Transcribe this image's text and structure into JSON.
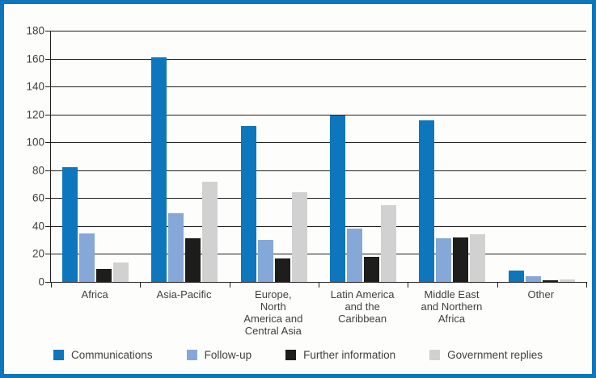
{
  "frame": {
    "border_color": "#0e76bc",
    "background": "#fdfdfb"
  },
  "chart_data": {
    "type": "bar",
    "title": "",
    "xlabel": "",
    "ylabel": "",
    "ylim": [
      0,
      180
    ],
    "y_ticks": [
      0,
      20,
      40,
      60,
      80,
      100,
      120,
      140,
      160,
      180
    ],
    "grid": "horizontal",
    "legend_position": "bottom",
    "categories": [
      "Africa",
      "Asia-Pacific",
      "Europe,\nNorth\nAmerica and\nCentral Asia",
      "Latin America\nand the\nCaribbean",
      "Middle East\nand Northern\nAfrica",
      "Other"
    ],
    "series": [
      {
        "name": "Communications",
        "color": "#0e76bc",
        "values": [
          82,
          161,
          112,
          119,
          116,
          8
        ]
      },
      {
        "name": "Follow-up",
        "color": "#85a8d8",
        "values": [
          35,
          49,
          30,
          38,
          31,
          4
        ]
      },
      {
        "name": "Further information",
        "color": "#1d1d1b",
        "values": [
          9,
          31,
          17,
          18,
          32,
          1
        ]
      },
      {
        "name": "Government replies",
        "color": "#d1d1d1",
        "values": [
          14,
          72,
          64,
          55,
          34,
          2
        ]
      }
    ]
  }
}
